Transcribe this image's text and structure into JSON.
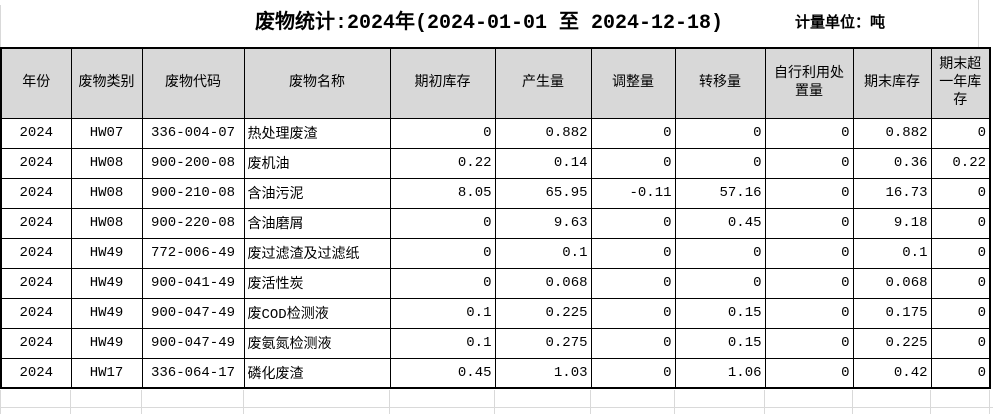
{
  "title": {
    "text": "废物统计:2024年(2024-01-01 至 2024-12-18)",
    "unit_label": "计量单位：吨"
  },
  "table": {
    "columns": [
      {
        "key": "year",
        "label": "年份"
      },
      {
        "key": "waste-category",
        "label": "废物类别"
      },
      {
        "key": "waste-code",
        "label": "废物代码"
      },
      {
        "key": "waste-name",
        "label": "废物名称"
      },
      {
        "key": "opening-stock",
        "label": "期初库存"
      },
      {
        "key": "generated-amount",
        "label": "产生量"
      },
      {
        "key": "adjusted-amount",
        "label": "调整量"
      },
      {
        "key": "transferred-amount",
        "label": "转移量"
      },
      {
        "key": "self-disposal-amount",
        "label": "自行利用处置量"
      },
      {
        "key": "closing-stock",
        "label": "期末库存"
      },
      {
        "key": "over-one-year-stock",
        "label": "期末超一年库存"
      }
    ],
    "rows": [
      [
        "2024",
        "HW07",
        "336-004-07",
        "热处理废渣",
        "0",
        "0.882",
        "0",
        "0",
        "0",
        "0.882",
        "0"
      ],
      [
        "2024",
        "HW08",
        "900-200-08",
        "废机油",
        "0.22",
        "0.14",
        "0",
        "0",
        "0",
        "0.36",
        "0.22"
      ],
      [
        "2024",
        "HW08",
        "900-210-08",
        "含油污泥",
        "8.05",
        "65.95",
        "-0.11",
        "57.16",
        "0",
        "16.73",
        "0"
      ],
      [
        "2024",
        "HW08",
        "900-220-08",
        "含油磨屑",
        "0",
        "9.63",
        "0",
        "0.45",
        "0",
        "9.18",
        "0"
      ],
      [
        "2024",
        "HW49",
        "772-006-49",
        "废过滤渣及过滤纸",
        "0",
        "0.1",
        "0",
        "0",
        "0",
        "0.1",
        "0"
      ],
      [
        "2024",
        "HW49",
        "900-041-49",
        "废活性炭",
        "0",
        "0.068",
        "0",
        "0",
        "0",
        "0.068",
        "0"
      ],
      [
        "2024",
        "HW49",
        "900-047-49",
        "废COD检测液",
        "0.1",
        "0.225",
        "0",
        "0.15",
        "0",
        "0.175",
        "0"
      ],
      [
        "2024",
        "HW49",
        "900-047-49",
        "废氨氮检测液",
        "0.1",
        "0.275",
        "0",
        "0.15",
        "0",
        "0.225",
        "0"
      ],
      [
        "2024",
        "HW17",
        "336-064-17",
        "磷化废渣",
        "0.45",
        "1.03",
        "0",
        "1.06",
        "0",
        "0.42",
        "0"
      ]
    ]
  },
  "colors": {
    "header_bg": "#d8d8d8",
    "table_border": "#000000",
    "gridline": "#d9d9d9"
  }
}
